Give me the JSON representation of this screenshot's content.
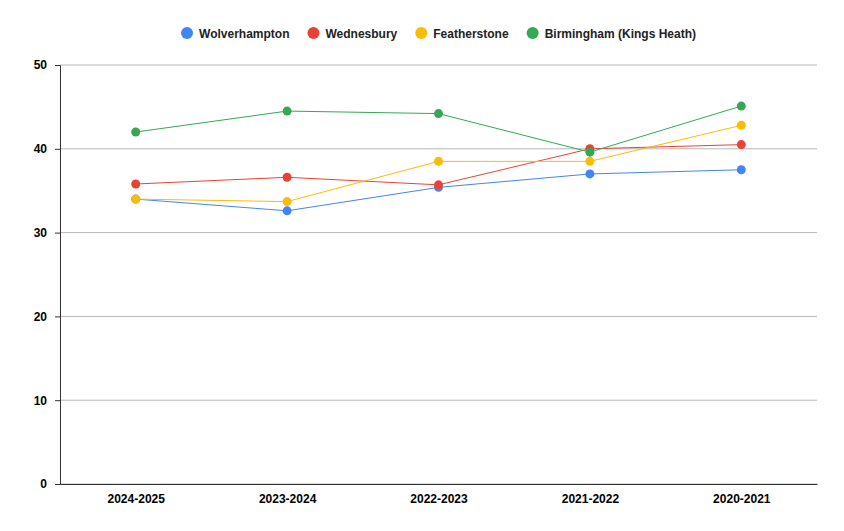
{
  "chart_data": {
    "type": "line",
    "categories": [
      "2024-2025",
      "2023-2024",
      "2022-2023",
      "2021-2022",
      "2020-2021"
    ],
    "series": [
      {
        "name": "Wolverhampton",
        "color": "#4285f4",
        "values": [
          34.0,
          32.6,
          35.4,
          37.0,
          37.5
        ]
      },
      {
        "name": "Wednesbury",
        "color": "#ea4335",
        "values": [
          35.8,
          36.6,
          35.7,
          40.0,
          40.5
        ]
      },
      {
        "name": "Featherstone",
        "color": "#fbbc04",
        "values": [
          34.0,
          33.7,
          38.5,
          38.5,
          42.8
        ]
      },
      {
        "name": "Birmingham (Kings Heath)",
        "color": "#34a853",
        "values": [
          42.0,
          44.5,
          44.2,
          39.6,
          45.1
        ]
      }
    ],
    "ylim": [
      0,
      50
    ],
    "yticks": [
      0,
      10,
      20,
      30,
      40,
      50
    ],
    "grid": true,
    "legend": "top",
    "marker": "circle"
  }
}
